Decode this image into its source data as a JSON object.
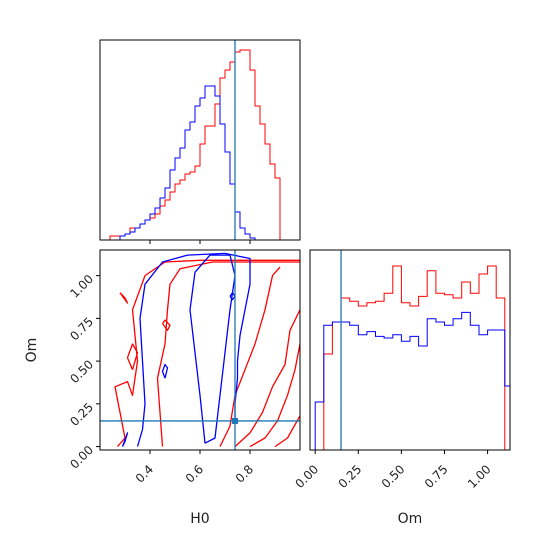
{
  "colors": {
    "series_a": "#ff0000",
    "series_b": "#0000ff",
    "truth": "#1f77b4",
    "axes": "#000000"
  },
  "chart_data": [
    {
      "panel": "H0 marginal",
      "type": "histogram",
      "xlim": [
        0.2,
        1.0
      ],
      "truth": 0.74,
      "bin_width": 0.02,
      "series": [
        {
          "color": "red",
          "x_start": 0.24,
          "values": [
            0.02,
            0.02,
            0.02,
            0.03,
            0.06,
            0.06,
            0.08,
            0.1,
            0.11,
            0.13,
            0.17,
            0.2,
            0.24,
            0.28,
            0.3,
            0.33,
            0.34,
            0.37,
            0.48,
            0.57,
            0.57,
            0.68,
            0.81,
            0.85,
            0.89,
            0.94,
            0.95,
            0.95,
            0.85,
            0.67,
            0.58,
            0.48,
            0.38,
            0.31
          ]
        },
        {
          "color": "blue",
          "x_start": 0.28,
          "values": [
            0.02,
            0.03,
            0.04,
            0.06,
            0.08,
            0.1,
            0.13,
            0.16,
            0.21,
            0.26,
            0.35,
            0.41,
            0.46,
            0.55,
            0.59,
            0.67,
            0.71,
            0.77,
            0.77,
            0.72,
            0.58,
            0.44,
            0.28,
            0.14,
            0.06,
            0.03,
            0.01
          ]
        }
      ]
    },
    {
      "panel": "H0 vs Om",
      "type": "contour",
      "xlabel": "H0",
      "ylabel": "Om",
      "xlim": [
        0.2,
        1.0
      ],
      "ylim": [
        -0.02,
        1.15
      ],
      "xticks": [
        "0.4",
        "0.6",
        "0.8"
      ],
      "xtick_values": [
        0.4,
        0.6,
        0.8
      ],
      "yticks": [
        "0.00",
        "0.25",
        "0.50",
        "0.75",
        "1.00"
      ],
      "ytick_values": [
        0.0,
        0.25,
        0.5,
        0.75,
        1.0
      ],
      "truth": {
        "x": 0.74,
        "y": 0.15
      },
      "series": [
        {
          "color": "red",
          "contours": [
            [
              [
                0.45,
                0.0
              ],
              [
                0.44,
                0.2
              ],
              [
                0.43,
                0.4
              ],
              [
                0.46,
                0.6
              ],
              [
                0.47,
                0.8
              ],
              [
                0.48,
                0.95
              ],
              [
                0.52,
                1.04
              ],
              [
                0.65,
                1.08
              ],
              [
                0.85,
                1.08
              ],
              [
                1.0,
                1.08
              ]
            ],
            [
              [
                0.27,
                0.0
              ],
              [
                0.3,
                0.05
              ],
              [
                0.28,
                0.2
              ],
              [
                0.26,
                0.35
              ],
              [
                0.31,
                0.38
              ],
              [
                0.33,
                0.3
              ],
              [
                0.35,
                0.5
              ],
              [
                0.33,
                0.8
              ],
              [
                0.38,
                1.0
              ],
              [
                0.46,
                1.08
              ],
              [
                0.6,
                1.09
              ],
              [
                0.8,
                1.09
              ],
              [
                1.0,
                1.09
              ]
            ],
            [
              [
                0.68,
                0.0
              ],
              [
                0.72,
                0.12
              ],
              [
                0.74,
                0.3
              ],
              [
                0.78,
                0.45
              ],
              [
                0.82,
                0.6
              ],
              [
                0.86,
                0.8
              ],
              [
                0.89,
                1.0
              ],
              [
                0.92,
                1.05
              ]
            ],
            [
              [
                0.74,
                0.0
              ],
              [
                0.8,
                0.08
              ],
              [
                0.85,
                0.2
              ],
              [
                0.89,
                0.35
              ],
              [
                0.94,
                0.48
              ],
              [
                0.96,
                0.68
              ],
              [
                1.0,
                0.8
              ]
            ],
            [
              [
                0.8,
                0.0
              ],
              [
                0.86,
                0.05
              ],
              [
                0.91,
                0.15
              ],
              [
                0.95,
                0.3
              ],
              [
                0.98,
                0.45
              ],
              [
                1.0,
                0.6
              ]
            ],
            [
              [
                0.9,
                0.0
              ],
              [
                0.95,
                0.05
              ],
              [
                1.0,
                0.18
              ]
            ],
            [
              [
                0.28,
                0.9
              ],
              [
                0.3,
                0.87
              ],
              [
                0.31,
                0.84
              ],
              [
                0.29,
                0.88
              ],
              [
                0.28,
                0.9
              ]
            ],
            [
              [
                0.45,
                0.72
              ],
              [
                0.47,
                0.68
              ],
              [
                0.48,
                0.71
              ],
              [
                0.46,
                0.74
              ],
              [
                0.45,
                0.72
              ]
            ],
            [
              [
                0.33,
                0.45
              ],
              [
                0.35,
                0.55
              ],
              [
                0.33,
                0.6
              ],
              [
                0.31,
                0.52
              ],
              [
                0.33,
                0.45
              ]
            ]
          ]
        },
        {
          "color": "blue",
          "contours": [
            [
              [
                0.62,
                0.02
              ],
              [
                0.6,
                0.3
              ],
              [
                0.58,
                0.55
              ],
              [
                0.56,
                0.8
              ],
              [
                0.58,
                1.02
              ],
              [
                0.64,
                1.12
              ],
              [
                0.72,
                1.12
              ],
              [
                0.74,
                1.0
              ],
              [
                0.72,
                0.8
              ],
              [
                0.7,
                0.55
              ],
              [
                0.68,
                0.3
              ],
              [
                0.66,
                0.05
              ],
              [
                0.62,
                0.02
              ]
            ],
            [
              [
                0.35,
                0.0
              ],
              [
                0.37,
                0.1
              ],
              [
                0.38,
                0.25
              ],
              [
                0.37,
                0.5
              ],
              [
                0.36,
                0.75
              ],
              [
                0.38,
                0.95
              ],
              [
                0.45,
                1.08
              ],
              [
                0.55,
                1.12
              ],
              [
                0.7,
                1.13
              ],
              [
                0.8,
                1.1
              ],
              [
                0.8,
                0.95
              ],
              [
                0.78,
                0.8
              ],
              [
                0.76,
                0.65
              ],
              [
                0.75,
                0.5
              ],
              [
                0.75,
                0.4
              ],
              [
                0.74,
                0.25
              ],
              [
                0.74,
                0.15
              ]
            ],
            [
              [
                0.29,
                0.0
              ],
              [
                0.31,
                0.08
              ],
              [
                0.3,
                0.03
              ],
              [
                0.29,
                0.0
              ]
            ],
            [
              [
                0.72,
                0.88
              ],
              [
                0.73,
                0.86
              ],
              [
                0.74,
                0.88
              ],
              [
                0.73,
                0.9
              ],
              [
                0.72,
                0.88
              ]
            ],
            [
              [
                0.46,
                0.4
              ],
              [
                0.47,
                0.46
              ],
              [
                0.46,
                0.48
              ],
              [
                0.45,
                0.44
              ],
              [
                0.46,
                0.4
              ]
            ]
          ]
        }
      ]
    },
    {
      "panel": "Om marginal",
      "type": "histogram",
      "xlabel": "Om",
      "xlim": [
        -0.03,
        1.13
      ],
      "xticks": [
        "0.00",
        "0.25",
        "0.50",
        "0.75",
        "1.00"
      ],
      "xtick_values": [
        0.0,
        0.25,
        0.5,
        0.75,
        1.0
      ],
      "truth": 0.15,
      "bin_width": 0.05,
      "series": [
        {
          "color": "red",
          "x_start": 0.0,
          "values": [
            0.0,
            0.6,
            0.8,
            0.95,
            0.93,
            0.9,
            0.92,
            0.93,
            0.98,
            1.15,
            0.92,
            0.9,
            0.96,
            1.12,
            0.98,
            0.97,
            0.95,
            1.05,
            0.98,
            1.1,
            1.15,
            0.95,
            0.0
          ]
        },
        {
          "color": "blue",
          "x_start": 0.0,
          "values": [
            0.3,
            0.78,
            0.8,
            0.8,
            0.78,
            0.72,
            0.74,
            0.71,
            0.7,
            0.72,
            0.68,
            0.71,
            0.65,
            0.82,
            0.8,
            0.78,
            0.82,
            0.86,
            0.78,
            0.72,
            0.75,
            0.75,
            0.4,
            0.0,
            0.0
          ]
        }
      ]
    }
  ]
}
